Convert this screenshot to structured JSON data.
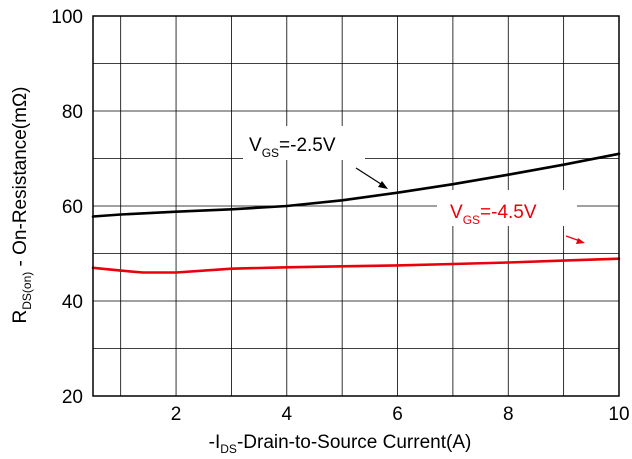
{
  "chart_data": {
    "type": "line",
    "title": "",
    "xlabel": {
      "prefix": "-I",
      "subscript": "DS",
      "suffix": "-Drain-to-Source Current(A)"
    },
    "ylabel": {
      "prefix": "R",
      "subscript": "DS(on)",
      "suffix": " -  On-Resistance(mΩ)"
    },
    "xlim": [
      0.5,
      10
    ],
    "ylim": [
      20,
      100
    ],
    "x_ticks": [
      2,
      4,
      6,
      8,
      10
    ],
    "x_tick_labels": [
      "2",
      "4",
      "6",
      "8",
      "10"
    ],
    "y_ticks": [
      20,
      40,
      60,
      80,
      100
    ],
    "y_tick_labels": [
      "20",
      "40",
      "60",
      "80",
      "100"
    ],
    "grid": true,
    "series": [
      {
        "color": "#000000",
        "x": [
          0.5,
          1,
          2,
          3,
          4,
          5,
          6,
          7,
          8,
          9,
          10
        ],
        "y": [
          57.8,
          58.2,
          58.8,
          59.3,
          60.0,
          61.2,
          62.8,
          64.6,
          66.6,
          68.7,
          71.0
        ],
        "annotation": {
          "prefix": "V",
          "subscript": "GS",
          "suffix": "=-2.5V"
        }
      },
      {
        "color": "#e8000b",
        "x": [
          0.5,
          1,
          1.4,
          2,
          3,
          4,
          5,
          6,
          7,
          8,
          9,
          10
        ],
        "y": [
          47.0,
          46.4,
          46.0,
          46.0,
          46.8,
          47.1,
          47.3,
          47.5,
          47.8,
          48.1,
          48.5,
          48.9
        ],
        "annotation": {
          "prefix": "V",
          "subscript": "GS",
          "suffix": "=-4.5V"
        }
      }
    ]
  }
}
